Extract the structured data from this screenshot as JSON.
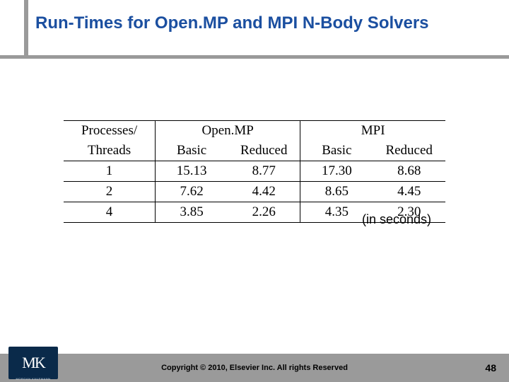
{
  "title_color": "#1b4fa0",
  "title": "Run-Times for Open.MP and MPI N-Body Solvers",
  "table": {
    "header_group_label": "Processes/",
    "header_group_label2": "Threads",
    "group1": "Open.MP",
    "group2": "MPI",
    "sub1": "Basic",
    "sub2": "Reduced",
    "sub3": "Basic",
    "sub4": "Reduced",
    "rows": [
      {
        "proc": "1",
        "v1": "15.13",
        "v2": "8.77",
        "v3": "17.30",
        "v4": "8.68"
      },
      {
        "proc": "2",
        "v1": "7.62",
        "v2": "4.42",
        "v3": "8.65",
        "v4": "4.45"
      },
      {
        "proc": "4",
        "v1": "3.85",
        "v2": "2.26",
        "v3": "4.35",
        "v4": "2.30"
      }
    ]
  },
  "caption": "(in seconds)",
  "logo_text": "MK",
  "logo_subtext": "MORGAN KAUFMANN",
  "copyright": "Copyright © 2010, Elsevier Inc. All rights Reserved",
  "page_number": "48"
}
